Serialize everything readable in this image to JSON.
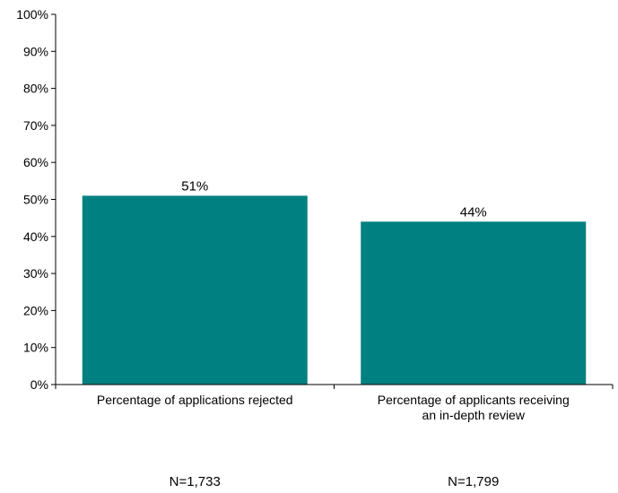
{
  "chart_data": {
    "type": "bar",
    "title": "",
    "xlabel": "",
    "ylabel": "",
    "ylim": [
      0,
      100
    ],
    "yticks": [
      0,
      10,
      20,
      30,
      40,
      50,
      60,
      70,
      80,
      90,
      100
    ],
    "ytick_labels": [
      "0%",
      "10%",
      "20%",
      "30%",
      "40%",
      "50%",
      "60%",
      "70%",
      "80%",
      "90%",
      "100%"
    ],
    "categories": [
      [
        "Percentage of applications rejected"
      ],
      [
        "Percentage of applicants receiving",
        "an in-depth review"
      ]
    ],
    "values": [
      51,
      44
    ],
    "value_labels": [
      "51%",
      "44%"
    ],
    "sample_sizes": [
      "N=1,733",
      "N=1,799"
    ],
    "bar_color": "#008080",
    "grid": false,
    "legend": "none"
  }
}
